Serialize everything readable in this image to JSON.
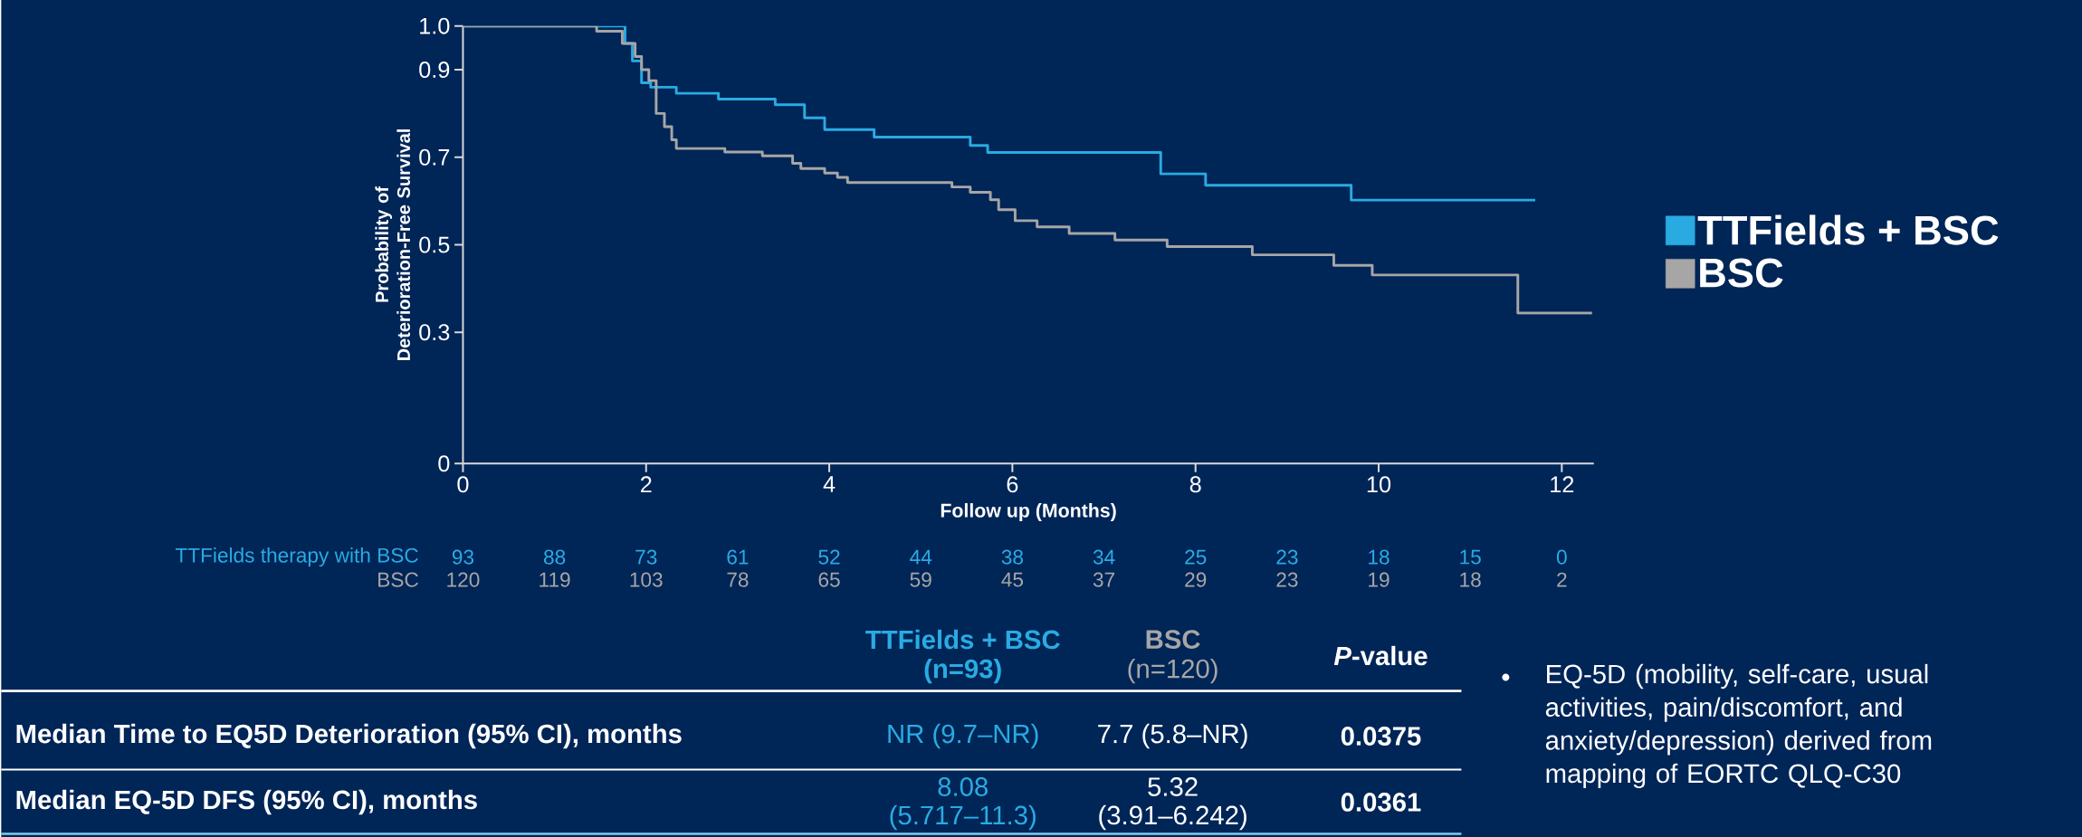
{
  "chart_data": {
    "type": "step",
    "xlabel": "Follow up (Months)",
    "ylabel": "Probability of Deterioration-Free Survival",
    "xlim": [
      0,
      12.35
    ],
    "ylim": [
      0,
      1
    ],
    "xticks": [
      0,
      2,
      4,
      6,
      8,
      10,
      12
    ],
    "yticks": [
      0,
      0.3,
      0.5,
      0.7,
      0.9,
      {
        "value": 1,
        "label": "1.0"
      }
    ],
    "legend": "right",
    "series": [
      {
        "name": "TTFields + BSC",
        "color": "#29abe2",
        "x": [
          0,
          1.77,
          1.85,
          1.95,
          2.05,
          2.33,
          2.79,
          3.41,
          3.73,
          3.95,
          4.49,
          5.54,
          5.73,
          7.62,
          8.11,
          9.7,
          11.71
        ],
        "values": [
          1,
          0.96,
          0.92,
          0.87,
          0.86,
          0.846,
          0.833,
          0.82,
          0.79,
          0.763,
          0.746,
          0.727,
          0.711,
          0.662,
          0.636,
          0.602,
          0.602
        ]
      },
      {
        "name": "BSC",
        "color": "#a6a6a6",
        "x": [
          0,
          1.46,
          1.74,
          1.88,
          1.95,
          2.03,
          2.11,
          2.2,
          2.28,
          2.33,
          2.86,
          3.27,
          3.6,
          3.69,
          3.95,
          4.09,
          4.2,
          5.34,
          5.54,
          5.76,
          5.85,
          6.03,
          6.27,
          6.62,
          7.12,
          7.69,
          8.62,
          9.51,
          9.93,
          11.52,
          12.33
        ],
        "values": [
          1,
          0.988,
          0.96,
          0.93,
          0.9,
          0.875,
          0.8,
          0.77,
          0.74,
          0.72,
          0.712,
          0.703,
          0.686,
          0.674,
          0.664,
          0.654,
          0.642,
          0.632,
          0.62,
          0.603,
          0.58,
          0.555,
          0.541,
          0.526,
          0.511,
          0.496,
          0.477,
          0.453,
          0.431,
          0.344,
          0.344
        ]
      }
    ],
    "annotations": [
      "TTFields therapy with BSC",
      "93",
      "88",
      "73",
      "61",
      "52",
      "44",
      "38",
      "34",
      "25",
      "23",
      "18",
      "15",
      "0",
      "BSC",
      "120",
      "119",
      "103",
      "78",
      "65",
      "59",
      "45",
      "37",
      "29",
      "23",
      "19",
      "18",
      "2",
      "TTFields + BSC",
      "(n=93)",
      "BSC",
      "(n=120)",
      "*P*-value",
      "Median Time to EQ5D Deterioration (95% CI), months",
      "NR (9.7–NR)",
      "7.7 (5.8–NR)",
      "0.0375",
      "Median EQ-5D DFS (95% CI), months",
      "8.08",
      "(5.717–11.3)",
      "5.32",
      "(3.91–6.242)",
      "0.0361",
      "EQ-5D (mobility, self-care, usual activities, pain/discomfort, and anxiety/depression)  derived from mapping of EORTC QLQ-C30"
    ]
  }
}
